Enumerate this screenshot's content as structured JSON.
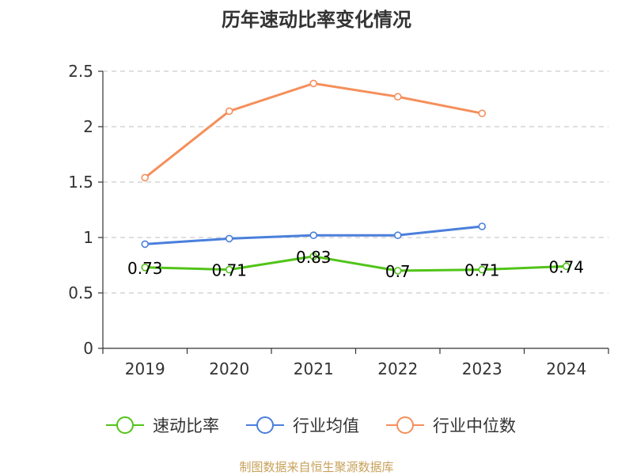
{
  "chart_data": {
    "type": "line",
    "title": "历年速动比率变化情况",
    "categories": [
      "2019",
      "2020",
      "2021",
      "2022",
      "2023",
      "2024"
    ],
    "ylim": [
      0,
      2.5
    ],
    "yticks": [
      "0",
      "0.5",
      "1",
      "1.5",
      "2",
      "2.5"
    ],
    "ytick_values": [
      0,
      0.5,
      1,
      1.5,
      2,
      2.5
    ],
    "grid": true,
    "legend_position": "bottom",
    "series": [
      {
        "name": "速动比率",
        "color": "#52c41a",
        "values": [
          0.73,
          0.71,
          0.83,
          0.7,
          0.71,
          0.74
        ],
        "labels": [
          "0.73",
          "0.71",
          "0.83",
          "0.7",
          "0.71",
          "0.74"
        ]
      },
      {
        "name": "行业均值",
        "color": "#4a7fdc",
        "values": [
          0.94,
          0.99,
          1.02,
          1.02,
          1.1,
          null
        ]
      },
      {
        "name": "行业中位数",
        "color": "#f58f5b",
        "values": [
          1.54,
          2.14,
          2.39,
          2.27,
          2.12,
          null
        ]
      }
    ],
    "source": "制图数据来自恒生聚源数据库"
  }
}
